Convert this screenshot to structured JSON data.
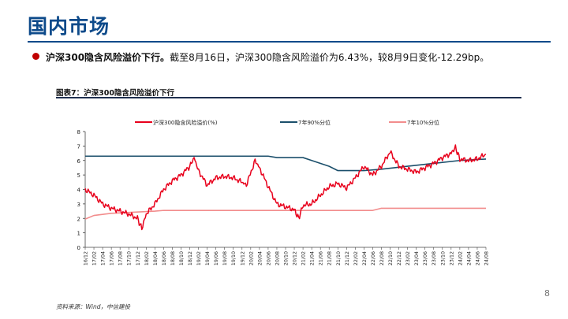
{
  "header": {
    "title": "国内市场"
  },
  "bullet": {
    "bold_text": "沪深300隐含风险溢价下行。",
    "body_text": "截至8月16日，沪深300隐含风险溢价为6.43%，较8月9日变化-12.29bp。"
  },
  "figure": {
    "title": "图表7：沪深300隐含风险溢价下行"
  },
  "footer": {
    "source": "资料来源：Wind，中信建投",
    "page_number": "8"
  },
  "colors": {
    "series_red": "#e8001c",
    "series_navy": "#1b4f6b",
    "series_pink": "#f28c8c",
    "title_blue": "#0d4a8a"
  },
  "chart_data": {
    "type": "line",
    "title": "",
    "xlabel": "",
    "ylabel": "",
    "ylim": [
      0,
      8
    ],
    "y_ticks": [
      "0",
      "1",
      "2",
      "3",
      "4",
      "5",
      "6",
      "7",
      "8"
    ],
    "grid": false,
    "legend_position": "top",
    "x_tick_labels": [
      "16/12",
      "17/02",
      "17/04",
      "17/06",
      "17/08",
      "17/10",
      "17/12",
      "18/02",
      "18/04",
      "18/06",
      "18/08",
      "18/10",
      "18/12",
      "19/02",
      "19/04",
      "19/06",
      "19/08",
      "19/10",
      "19/12",
      "20/02",
      "20/04",
      "20/06",
      "20/08",
      "20/10",
      "20/12",
      "21/02",
      "21/04",
      "21/06",
      "21/08",
      "21/10",
      "21/12",
      "22/02",
      "22/04",
      "22/06",
      "22/08",
      "22/10",
      "22/12",
      "23/02",
      "23/04",
      "23/06",
      "23/08",
      "23/10",
      "23/12",
      "24/02",
      "24/04",
      "24/06",
      "24/08"
    ],
    "series": [
      {
        "name": "沪深300隐含风险溢价(%)",
        "color": "#e8001c",
        "points": [
          [
            "16/12",
            4.0
          ],
          [
            "17/02",
            3.6
          ],
          [
            "17/04",
            3.0
          ],
          [
            "17/06",
            2.7
          ],
          [
            "17/08",
            2.5
          ],
          [
            "17/10",
            2.3
          ],
          [
            "17/12",
            2.0
          ],
          [
            "18/01",
            1.3
          ],
          [
            "18/02",
            2.3
          ],
          [
            "18/04",
            3.0
          ],
          [
            "18/06",
            4.0
          ],
          [
            "18/08",
            4.6
          ],
          [
            "18/10",
            5.0
          ],
          [
            "18/12",
            5.6
          ],
          [
            "19/01",
            6.2
          ],
          [
            "19/02",
            5.3
          ],
          [
            "19/04",
            4.3
          ],
          [
            "19/06",
            4.8
          ],
          [
            "19/08",
            4.9
          ],
          [
            "19/10",
            4.8
          ],
          [
            "19/12",
            4.5
          ],
          [
            "20/01",
            4.3
          ],
          [
            "20/03",
            6.0
          ],
          [
            "20/04",
            5.5
          ],
          [
            "20/06",
            4.2
          ],
          [
            "20/08",
            3.0
          ],
          [
            "20/10",
            2.8
          ],
          [
            "20/12",
            2.6
          ],
          [
            "21/01",
            2.0
          ],
          [
            "21/02",
            2.9
          ],
          [
            "21/04",
            3.0
          ],
          [
            "21/06",
            3.6
          ],
          [
            "21/08",
            4.2
          ],
          [
            "21/10",
            4.4
          ],
          [
            "21/12",
            4.1
          ],
          [
            "22/02",
            4.8
          ],
          [
            "22/04",
            5.6
          ],
          [
            "22/06",
            5.0
          ],
          [
            "22/08",
            5.6
          ],
          [
            "22/10",
            6.6
          ],
          [
            "22/12",
            5.6
          ],
          [
            "23/02",
            5.4
          ],
          [
            "23/04",
            5.2
          ],
          [
            "23/06",
            5.5
          ],
          [
            "23/08",
            5.8
          ],
          [
            "23/10",
            6.2
          ],
          [
            "23/12",
            6.5
          ],
          [
            "24/01",
            6.9
          ],
          [
            "24/02",
            6.1
          ],
          [
            "24/04",
            6.0
          ],
          [
            "24/06",
            6.1
          ],
          [
            "24/08",
            6.43
          ]
        ]
      },
      {
        "name": "7年90%分位",
        "color": "#1b4f6b",
        "points": [
          [
            "16/12",
            6.3
          ],
          [
            "20/06",
            6.3
          ],
          [
            "20/08",
            6.2
          ],
          [
            "21/02",
            6.2
          ],
          [
            "21/04",
            6.0
          ],
          [
            "21/08",
            5.6
          ],
          [
            "21/10",
            5.3
          ],
          [
            "22/04",
            5.3
          ],
          [
            "22/08",
            5.4
          ],
          [
            "23/02",
            5.6
          ],
          [
            "23/08",
            5.8
          ],
          [
            "24/02",
            6.0
          ],
          [
            "24/08",
            6.1
          ]
        ]
      },
      {
        "name": "7年10%分位",
        "color": "#f28c8c",
        "points": [
          [
            "16/12",
            1.95
          ],
          [
            "17/02",
            2.2
          ],
          [
            "17/06",
            2.35
          ],
          [
            "18/04",
            2.5
          ],
          [
            "18/06",
            2.55
          ],
          [
            "22/06",
            2.55
          ],
          [
            "22/08",
            2.7
          ],
          [
            "24/08",
            2.7
          ]
        ]
      }
    ]
  }
}
